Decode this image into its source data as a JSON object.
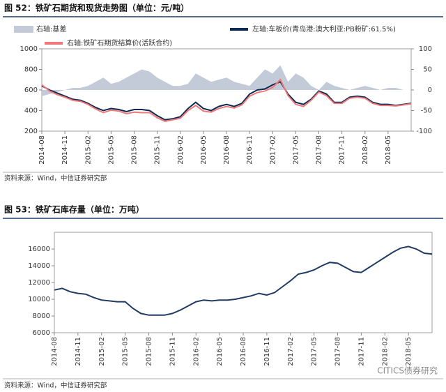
{
  "chart_data": [
    {
      "type": "line",
      "title": "图 52：铁矿石期货和现货走势图（单位：元/吨）",
      "source": "资料来源：Wind，中信证券研究部",
      "x": [
        "2014-08",
        "2014-09",
        "2014-10",
        "2014-11",
        "2014-12",
        "2015-01",
        "2015-02",
        "2015-03",
        "2015-04",
        "2015-05",
        "2015-06",
        "2015-07",
        "2015-08",
        "2015-09",
        "2015-10",
        "2015-11",
        "2015-12",
        "2016-01",
        "2016-02",
        "2016-03",
        "2016-04",
        "2016-05",
        "2016-06",
        "2016-07",
        "2016-08",
        "2016-09",
        "2016-10",
        "2016-11",
        "2016-12",
        "2017-01",
        "2017-02",
        "2017-03",
        "2017-04",
        "2017-05",
        "2017-06",
        "2017-07",
        "2017-08",
        "2017-09",
        "2017-10",
        "2017-11",
        "2017-12",
        "2018-01",
        "2018-02",
        "2018-03",
        "2018-04",
        "2018-05",
        "2018-06",
        "2018-07",
        "2018-08"
      ],
      "xticks": [
        "2014-08",
        "2014-11",
        "2015-02",
        "2015-05",
        "2015-08",
        "2015-11",
        "2016-02",
        "2016-05",
        "2016-08",
        "2016-11",
        "2017-02",
        "2017-05",
        "2017-08",
        "2017-11",
        "2018-02",
        "2018-05"
      ],
      "ylim": [
        200,
        1000
      ],
      "yticks": [
        200,
        400,
        600,
        800,
        1000
      ],
      "y2lim": [
        -100,
        100
      ],
      "y2ticks": [
        -100,
        -50,
        0,
        50,
        100
      ],
      "legend": "top",
      "series": [
        {
          "name": "右轴:基差",
          "color": "#c3cbd8",
          "axis": "y2",
          "style": "area",
          "values": [
            -15,
            -10,
            -5,
            0,
            5,
            5,
            10,
            20,
            30,
            15,
            20,
            30,
            40,
            50,
            45,
            30,
            20,
            10,
            10,
            15,
            40,
            30,
            20,
            25,
            30,
            20,
            15,
            10,
            30,
            50,
            40,
            60,
            20,
            40,
            30,
            10,
            0,
            20,
            10,
            5,
            0,
            5,
            10,
            5,
            0,
            5,
            5,
            0,
            0
          ]
        },
        {
          "name": "左轴:车板价(青岛港:澳大利亚:PB粉矿:61.5%)",
          "color": "#0d2a52",
          "values": [
            640,
            600,
            570,
            540,
            510,
            500,
            470,
            430,
            400,
            420,
            410,
            390,
            410,
            410,
            400,
            350,
            310,
            320,
            340,
            420,
            480,
            420,
            400,
            440,
            460,
            440,
            470,
            560,
            600,
            610,
            650,
            680,
            560,
            480,
            460,
            510,
            590,
            560,
            480,
            480,
            530,
            540,
            530,
            480,
            460,
            460,
            450,
            460,
            470
          ]
        },
        {
          "name": "右轴:铁矿石期货结算价(活跃合约)",
          "color": "#f07878",
          "values": [
            650,
            590,
            555,
            530,
            500,
            490,
            460,
            415,
            380,
            405,
            395,
            370,
            385,
            380,
            380,
            330,
            295,
            310,
            325,
            400,
            450,
            395,
            385,
            420,
            440,
            425,
            455,
            540,
            575,
            590,
            625,
            700,
            545,
            460,
            440,
            500,
            580,
            545,
            470,
            470,
            520,
            530,
            520,
            470,
            450,
            450,
            445,
            455,
            465
          ]
        }
      ]
    },
    {
      "type": "line",
      "title": "图 53：铁矿石库存量（单位：万吨）",
      "source": "资料来源：Wind，中信证券研究部",
      "watermark": "CITICS债券研究",
      "x": [
        "2014-08",
        "2014-09",
        "2014-10",
        "2014-11",
        "2014-12",
        "2015-01",
        "2015-02",
        "2015-03",
        "2015-04",
        "2015-05",
        "2015-06",
        "2015-07",
        "2015-08",
        "2015-09",
        "2015-10",
        "2015-11",
        "2015-12",
        "2016-01",
        "2016-02",
        "2016-03",
        "2016-04",
        "2016-05",
        "2016-06",
        "2016-07",
        "2016-08",
        "2016-09",
        "2016-10",
        "2016-11",
        "2016-12",
        "2017-01",
        "2017-02",
        "2017-03",
        "2017-04",
        "2017-05",
        "2017-06",
        "2017-07",
        "2017-08",
        "2017-09",
        "2017-10",
        "2017-11",
        "2017-12",
        "2018-01",
        "2018-02",
        "2018-03",
        "2018-04",
        "2018-05",
        "2018-06",
        "2018-07",
        "2018-08"
      ],
      "xticks": [
        "2014-08",
        "2014-11",
        "2015-02",
        "2015-05",
        "2015-08",
        "2015-11",
        "2016-02",
        "2016-05",
        "2016-08",
        "2016-11",
        "2017-02",
        "2017-05",
        "2017-08",
        "2017-11",
        "2018-02",
        "2018-05"
      ],
      "ylim": [
        6000,
        18000
      ],
      "yticks": [
        6000,
        8000,
        10000,
        12000,
        14000,
        16000
      ],
      "color": "#1f3a64",
      "values": [
        11100,
        11300,
        10900,
        10700,
        10600,
        10200,
        9900,
        9800,
        9700,
        9700,
        8900,
        8300,
        8100,
        8100,
        8100,
        8300,
        8700,
        9200,
        9700,
        9900,
        9800,
        9900,
        9900,
        10000,
        10200,
        10400,
        10700,
        10500,
        10800,
        11500,
        12200,
        13000,
        13200,
        13500,
        14000,
        14400,
        14300,
        13800,
        13300,
        13200,
        13800,
        14400,
        15000,
        15600,
        16100,
        16300,
        16000,
        15500,
        15400
      ]
    }
  ]
}
